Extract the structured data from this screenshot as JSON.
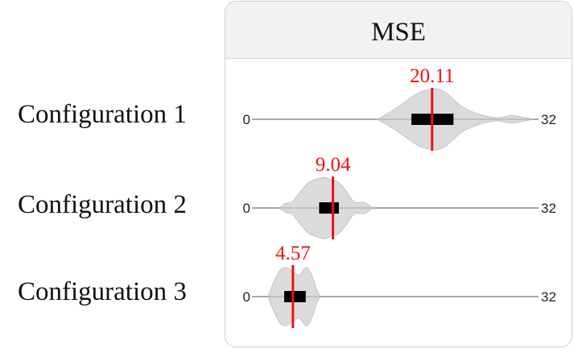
{
  "chart_data": {
    "type": "violin",
    "title": "MSE",
    "x_range": [
      0,
      32
    ],
    "axis_min_label": "0",
    "axis_max_label": "32",
    "mean_color": "#ee1111",
    "violin_color": "#d9d9d9",
    "box_color": "#000000",
    "series": [
      {
        "name": "Configuration 1",
        "mean_label": "20.11",
        "mean": 20.11,
        "iqr": [
          17.8,
          22.5
        ],
        "density": [
          [
            14,
            0
          ],
          [
            15.5,
            0.25
          ],
          [
            17,
            0.55
          ],
          [
            18.5,
            0.85
          ],
          [
            19.5,
            0.95
          ],
          [
            20.5,
            1.0
          ],
          [
            21.5,
            0.9
          ],
          [
            22.5,
            0.65
          ],
          [
            23.5,
            0.4
          ],
          [
            25,
            0.2
          ],
          [
            26.5,
            0.08
          ],
          [
            27.5,
            0.05
          ],
          [
            29,
            0.12
          ],
          [
            30.5,
            0.05
          ],
          [
            31.5,
            0
          ]
        ]
      },
      {
        "name": "Configuration 2",
        "mean_label": "9.04",
        "mean": 9.04,
        "iqr": [
          7.5,
          9.7
        ],
        "density": [
          [
            3.0,
            0
          ],
          [
            3.8,
            0.15
          ],
          [
            4.5,
            0.2
          ],
          [
            5.2,
            0.45
          ],
          [
            6.2,
            0.8
          ],
          [
            7.3,
            0.95
          ],
          [
            8.2,
            1.0
          ],
          [
            8.9,
            0.9
          ],
          [
            9.6,
            0.85
          ],
          [
            10.4,
            0.6
          ],
          [
            11.4,
            0.2
          ],
          [
            12.5,
            0.18
          ],
          [
            13.5,
            0
          ]
        ]
      },
      {
        "name": "Configuration 3",
        "mean_label": "4.57",
        "mean": 4.57,
        "iqr": [
          3.6,
          6.0
        ],
        "density": [
          [
            1.8,
            0
          ],
          [
            2.4,
            0.45
          ],
          [
            3.1,
            0.85
          ],
          [
            3.8,
            0.95
          ],
          [
            4.6,
            0.8
          ],
          [
            5.3,
            0.7
          ],
          [
            6.0,
            0.95
          ],
          [
            6.6,
            0.75
          ],
          [
            7.2,
            0.25
          ],
          [
            7.6,
            0
          ]
        ]
      }
    ]
  }
}
